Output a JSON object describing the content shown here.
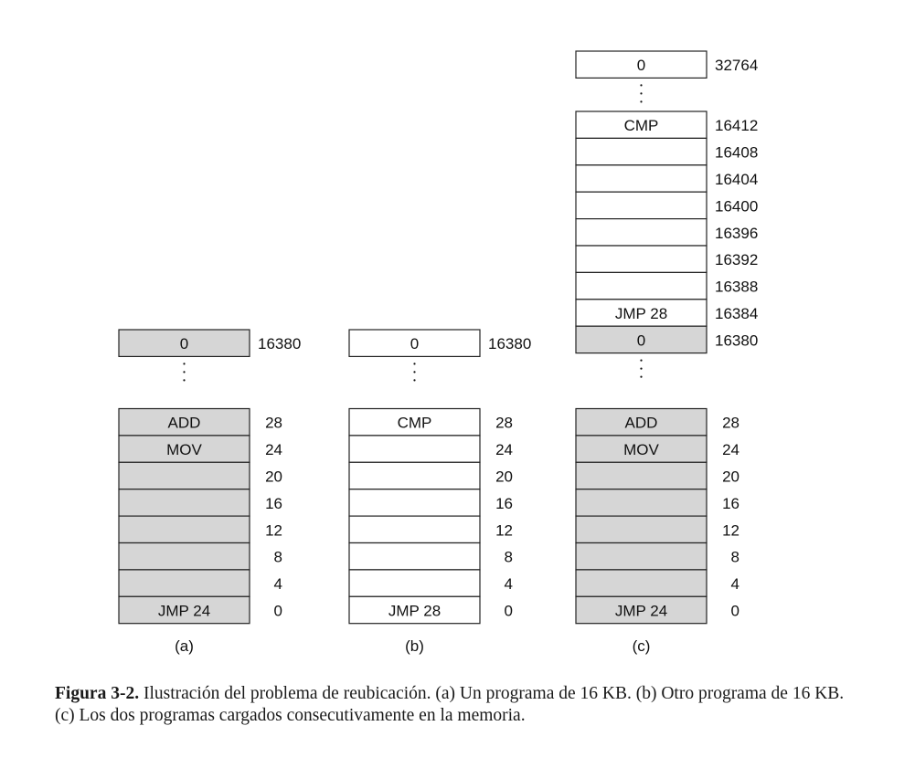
{
  "colors": {
    "shaded": "#d6d6d6",
    "plain": "#ffffff",
    "border": "#222222"
  },
  "panels": [
    {
      "label": "(a)",
      "top": {
        "text": "0",
        "addr": "16380",
        "shaded": true
      },
      "cells": [
        {
          "text": "ADD",
          "addr": "28",
          "shaded": true
        },
        {
          "text": "MOV",
          "addr": "24",
          "shaded": true
        },
        {
          "text": "",
          "addr": "20",
          "shaded": true
        },
        {
          "text": "",
          "addr": "16",
          "shaded": true
        },
        {
          "text": "",
          "addr": "12",
          "shaded": true
        },
        {
          "text": "",
          "addr": "8",
          "shaded": true
        },
        {
          "text": "",
          "addr": "4",
          "shaded": true
        },
        {
          "text": "JMP  24",
          "addr": "0",
          "shaded": true
        }
      ]
    },
    {
      "label": "(b)",
      "top": {
        "text": "0",
        "addr": "16380",
        "shaded": false
      },
      "cells": [
        {
          "text": "CMP",
          "addr": "28",
          "shaded": false
        },
        {
          "text": "",
          "addr": "24",
          "shaded": false
        },
        {
          "text": "",
          "addr": "20",
          "shaded": false
        },
        {
          "text": "",
          "addr": "16",
          "shaded": false
        },
        {
          "text": "",
          "addr": "12",
          "shaded": false
        },
        {
          "text": "",
          "addr": "8",
          "shaded": false
        },
        {
          "text": "",
          "addr": "4",
          "shaded": false
        },
        {
          "text": "JMP 28",
          "addr": "0",
          "shaded": false
        }
      ]
    },
    {
      "label": "(c)",
      "top": {
        "text": "0",
        "addr": "32764",
        "shaded": false
      },
      "upper_cells": [
        {
          "text": "CMP",
          "addr": "16412",
          "shaded": false
        },
        {
          "text": "",
          "addr": "16408",
          "shaded": false
        },
        {
          "text": "",
          "addr": "16404",
          "shaded": false
        },
        {
          "text": "",
          "addr": "16400",
          "shaded": false
        },
        {
          "text": "",
          "addr": "16396",
          "shaded": false
        },
        {
          "text": "",
          "addr": "16392",
          "shaded": false
        },
        {
          "text": "",
          "addr": "16388",
          "shaded": false
        },
        {
          "text": "JMP 28",
          "addr": "16384",
          "shaded": false
        },
        {
          "text": "0",
          "addr": "16380",
          "shaded": true
        }
      ],
      "cells": [
        {
          "text": "ADD",
          "addr": "28",
          "shaded": true
        },
        {
          "text": "MOV",
          "addr": "24",
          "shaded": true
        },
        {
          "text": "",
          "addr": "20",
          "shaded": true
        },
        {
          "text": "",
          "addr": "16",
          "shaded": true
        },
        {
          "text": "",
          "addr": "12",
          "shaded": true
        },
        {
          "text": "",
          "addr": "8",
          "shaded": true
        },
        {
          "text": "",
          "addr": "4",
          "shaded": true
        },
        {
          "text": "JMP  24",
          "addr": "0",
          "shaded": true
        }
      ]
    }
  ],
  "caption": {
    "label": "Figura 3-2.",
    "text": "Ilustración del problema de reubicación.  (a) Un programa de 16 KB.  (b) Otro programa de 16 KB.  (c) Los dos programas cargados consecutivamente en la memoria."
  }
}
